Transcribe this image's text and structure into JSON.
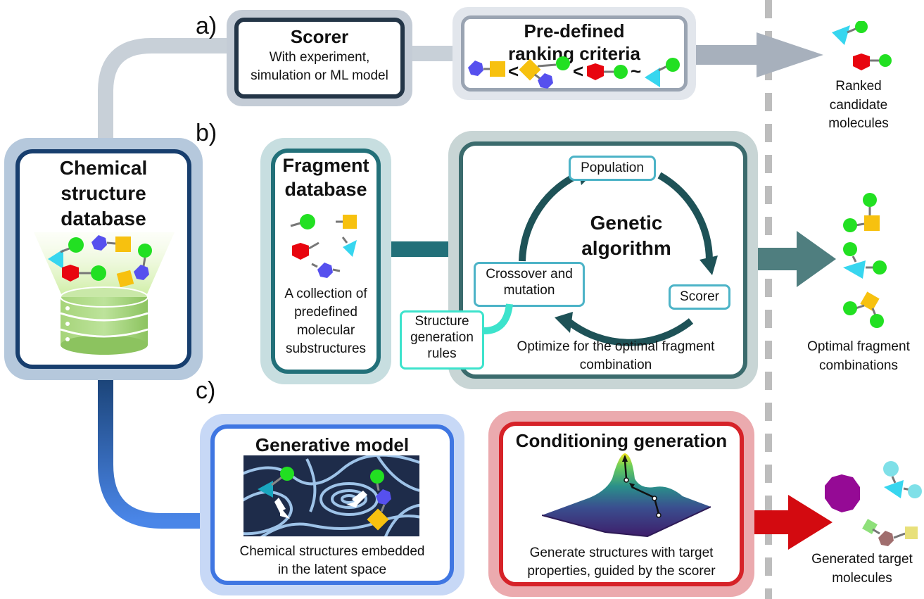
{
  "sections": {
    "a": "a)",
    "b": "b)",
    "c": "c)"
  },
  "chemical_db": {
    "line1": "Chemical",
    "line2": "structure",
    "line3": "database"
  },
  "scorer": {
    "title": "Scorer",
    "line1": "With experiment,",
    "line2": "simulation or ML model"
  },
  "ranking": {
    "title_line1": "Pre-defined",
    "title_line2": "ranking criteria",
    "lt1": "<",
    "lt2": "<",
    "tilde": "~"
  },
  "ranked_output": {
    "line1": "Ranked",
    "line2": "candidate",
    "line3": "molecules"
  },
  "fragment_db": {
    "title_line1": "Fragment",
    "title_line2": "database",
    "desc_line1": "A collection of",
    "desc_line2": "predefined",
    "desc_line3": "molecular",
    "desc_line4": "substructures"
  },
  "genetic": {
    "title_line1": "Genetic",
    "title_line2": "algorithm",
    "population": "Population",
    "crossover_line1": "Crossover and",
    "crossover_line2": "mutation",
    "scorer": "Scorer",
    "rules_line1": "Structure",
    "rules_line2": "generation",
    "rules_line3": "rules",
    "optimize_line1": "Optimize for the optimal fragment",
    "optimize_line2": "combination"
  },
  "optimal_output": {
    "line1": "Optimal fragment",
    "line2": "combinations"
  },
  "generative": {
    "title": "Generative model",
    "desc_line1": "Chemical structures embedded",
    "desc_line2": "in the latent space"
  },
  "conditioning": {
    "title": "Conditioning generation",
    "desc_line1": "Generate structures with target",
    "desc_line2": "properties, guided by the scorer"
  },
  "generated_output": {
    "line1": "Generated target",
    "line2": "molecules"
  },
  "colors": {
    "green": "#22e022",
    "yellow": "#f7c10f",
    "blue": "#5650ee",
    "red": "#e8050f",
    "cyan": "#37d6ef",
    "navy": "#173e6e",
    "teal": "#227079",
    "tealdark": "#2e5f63",
    "generative_blue": "#3f76e2",
    "conditioning_red": "#d62228"
  }
}
